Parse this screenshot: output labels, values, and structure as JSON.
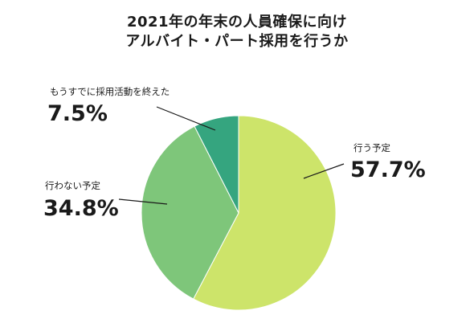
{
  "chart_data": {
    "type": "pie",
    "title_lines": [
      "2021年の年末の人員確保に向け",
      "アルバイト・パート採用を行うか"
    ],
    "start_angle": "12 o'clock",
    "direction": "clockwise",
    "slices": [
      {
        "label": "行う予定",
        "value": 57.7,
        "value_label": "57.7%",
        "color": "#cde46a"
      },
      {
        "label": "行わない予定",
        "value": 34.8,
        "value_label": "34.8%",
        "color": "#7ec67a"
      },
      {
        "label": "もうすでに採用活動を終えた",
        "value": 7.5,
        "value_label": "7.5%",
        "color": "#35a57f"
      }
    ]
  }
}
